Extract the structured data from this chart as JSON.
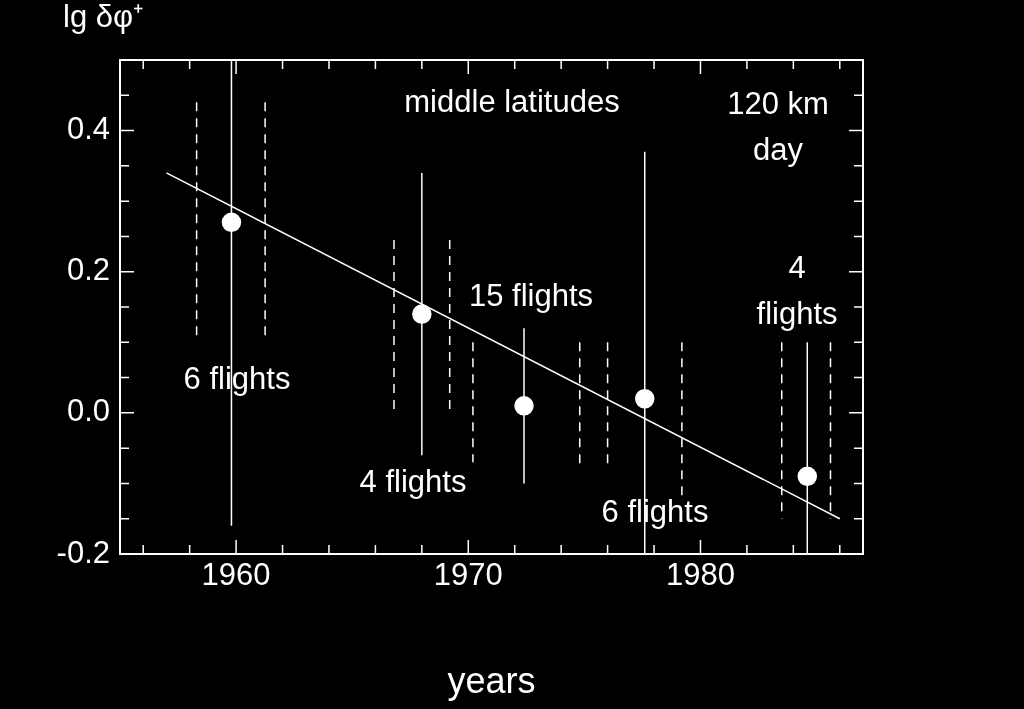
{
  "chart_data": {
    "type": "scatter",
    "xlabel": "years",
    "ylabel": "lg δφ⁺",
    "xlim": [
      1955,
      1987
    ],
    "xticks": [
      {
        "value": 1956,
        "label": null
      },
      {
        "value": 1958,
        "label": null
      },
      1960,
      {
        "value": 1962,
        "label": null
      },
      {
        "value": 1964,
        "label": null
      },
      {
        "value": 1966,
        "label": null
      },
      {
        "value": 1968,
        "label": null
      },
      1970,
      {
        "value": 1972,
        "label": null
      },
      {
        "value": 1974,
        "label": null
      },
      {
        "value": 1976,
        "label": null
      },
      {
        "value": 1978,
        "label": null
      },
      1980,
      {
        "value": 1982,
        "label": null
      },
      {
        "value": 1984,
        "label": null
      },
      {
        "value": 1986,
        "label": null
      }
    ],
    "ylim": [
      -0.2,
      0.5
    ],
    "yticks": [
      {
        "value": -0.2,
        "label": "-0.2"
      },
      {
        "value": -0.15,
        "label": null
      },
      {
        "value": -0.1,
        "label": null
      },
      {
        "value": -0.05,
        "label": null
      },
      {
        "value": 0,
        "label": "0.0"
      },
      {
        "value": 0.05,
        "label": null
      },
      {
        "value": 0.1,
        "label": null
      },
      {
        "value": 0.15,
        "label": null
      },
      {
        "value": 0.2,
        "label": "0.2"
      },
      {
        "value": 0.25,
        "label": null
      },
      {
        "value": 0.3,
        "label": null
      },
      {
        "value": 0.35,
        "label": null
      },
      {
        "value": 0.4,
        "label": "0.4"
      },
      {
        "value": 0.45,
        "label": null
      }
    ],
    "grid": false,
    "legend": false,
    "series": [
      {
        "color": "#ffffff",
        "marker": "circle",
        "x": [
          1959.8,
          1968.0,
          1972.4,
          1977.6,
          1984.6
        ],
        "values": [
          0.27,
          0.14,
          0.01,
          0.02,
          -0.09
        ],
        "errors": [
          [
            -0.16,
            0.5
          ],
          [
            -0.06,
            0.34
          ],
          [
            -0.1,
            0.12
          ],
          [
            -0.2,
            0.37
          ],
          [
            -0.2,
            0.1
          ]
        ]
      },
      {
        "type": "line",
        "color": "#ffffff",
        "marker": "none",
        "line_style": "solid",
        "x": [
          1957.0,
          1986.0
        ],
        "values": [
          0.34,
          -0.15
        ]
      },
      {
        "type": "line",
        "color": "#ffffff",
        "marker": "none",
        "line_style": "dashed",
        "x": [
          1958.3,
          1958.3,
          null,
          1961.25,
          1961.25,
          null,
          1966.8,
          1966.8,
          null,
          1969.2,
          1969.2,
          null,
          1970.2,
          1970.2,
          null,
          1974.8,
          1974.8,
          null,
          1976.0,
          1976.0,
          null,
          1979.2,
          1979.2,
          null,
          1983.5,
          1983.5,
          null,
          1985.6,
          1985.6
        ],
        "values": [
          0.44,
          0.1,
          null,
          0.44,
          0.1,
          null,
          0.245,
          0.0,
          null,
          0.245,
          0.0,
          null,
          0.1,
          -0.07,
          null,
          0.1,
          -0.08,
          null,
          0.1,
          -0.08,
          null,
          0.1,
          -0.12,
          null,
          0.1,
          -0.15,
          null,
          0.1,
          -0.15
        ]
      }
    ],
    "annotations": [
      "middle latitudes",
      "120 km\nday",
      "6 flights",
      "4 flights",
      "15 flights",
      "6 flights",
      "4\nflights"
    ]
  }
}
